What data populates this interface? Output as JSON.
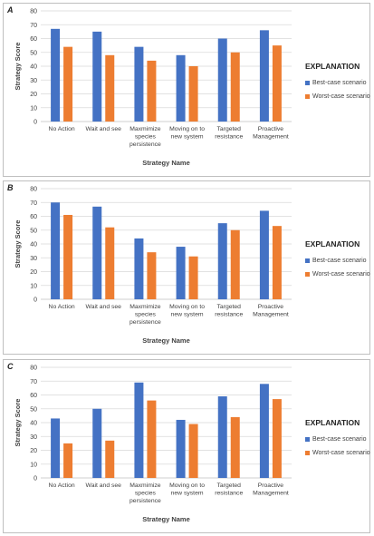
{
  "chart_data": [
    {
      "type": "bar",
      "panel_label": "A",
      "categories": [
        "No Action",
        "Wait and see",
        "Maxmimize species persistence",
        "Moving on to new system",
        "Targeted resistance",
        "Proactive Management"
      ],
      "series": [
        {
          "name": "Best-case scenario",
          "values": [
            67,
            65,
            54,
            48,
            60,
            66
          ]
        },
        {
          "name": "Worst-case scenario",
          "values": [
            54,
            48,
            44,
            40,
            50,
            55
          ]
        }
      ],
      "xlabel": "Strategy Name",
      "ylabel": "Strategy Score",
      "ylim": [
        0,
        80
      ],
      "yticks": [
        0,
        10,
        20,
        30,
        40,
        50,
        60,
        70,
        80
      ],
      "legend_title": "EXPLANATION",
      "legend_position": "right",
      "grid": true
    },
    {
      "type": "bar",
      "panel_label": "B",
      "categories": [
        "No Action",
        "Wait and see",
        "Maxmimize species persistence",
        "Moving on to new system",
        "Targeted resistance",
        "Proactive Management"
      ],
      "series": [
        {
          "name": "Best-case scenario",
          "values": [
            70,
            67,
            44,
            38,
            55,
            64
          ]
        },
        {
          "name": "Worst-case scenario",
          "values": [
            61,
            52,
            34,
            31,
            50,
            53
          ]
        }
      ],
      "xlabel": "Strategy Name",
      "ylabel": "Strategy Score",
      "ylim": [
        0,
        80
      ],
      "yticks": [
        0,
        10,
        20,
        30,
        40,
        50,
        60,
        70,
        80
      ],
      "legend_title": "EXPLANATION",
      "legend_position": "right",
      "grid": true
    },
    {
      "type": "bar",
      "panel_label": "C",
      "categories": [
        "No Action",
        "Wait and see",
        "Maxmimize species persistence",
        "Moving on to new system",
        "Targeted resistance",
        "Proactive Management"
      ],
      "series": [
        {
          "name": "Best-case scenario",
          "values": [
            43,
            50,
            69,
            42,
            59,
            68
          ]
        },
        {
          "name": "Worst-case scenario",
          "values": [
            25,
            27,
            56,
            39,
            44,
            57
          ]
        }
      ],
      "xlabel": "Strategy Name",
      "ylabel": "Strategy Score",
      "ylim": [
        0,
        80
      ],
      "yticks": [
        0,
        10,
        20,
        30,
        40,
        50,
        60,
        70,
        80
      ],
      "legend_title": "EXPLANATION",
      "legend_position": "right",
      "grid": true
    }
  ],
  "colors": {
    "best": "#4472c4",
    "worst": "#ed7d31",
    "grid": "#d9d9d9",
    "axis": "#bfbfbf"
  }
}
